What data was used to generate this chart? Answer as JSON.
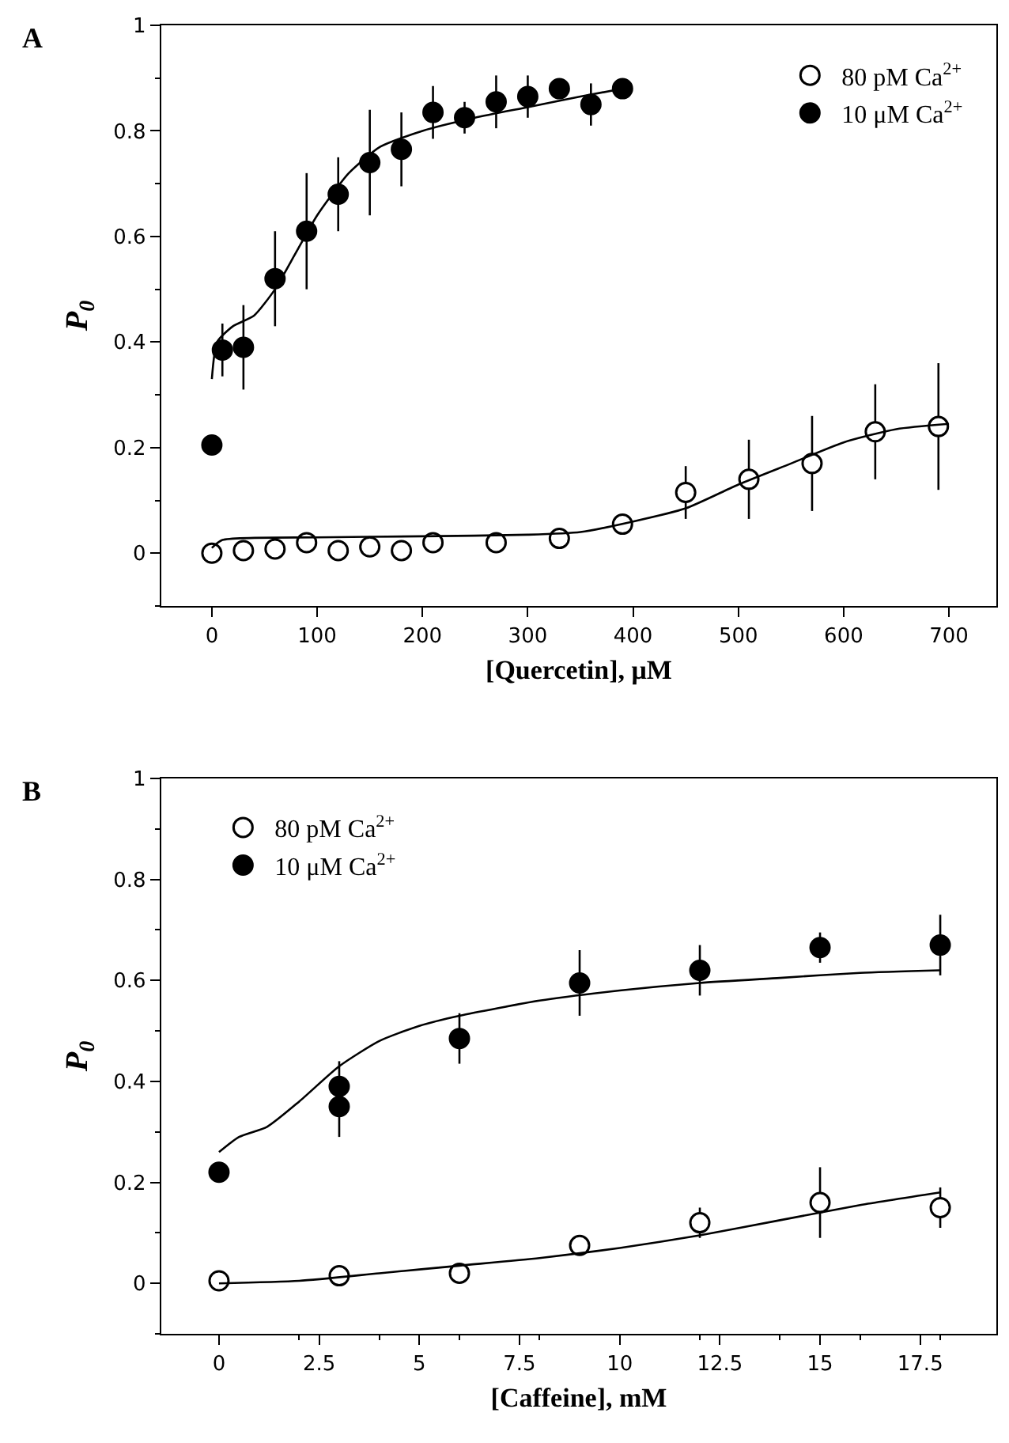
{
  "chart_data": [
    {
      "type": "scatter",
      "title": "A",
      "xlabel": "[Quercetin], μM",
      "ylabel": "P$_{0}$",
      "xlim": [
        -48,
        745
      ],
      "ylim": [
        -0.1,
        1
      ],
      "xticks": [
        0,
        100,
        200,
        300,
        400,
        500,
        600,
        700
      ],
      "yticks": [
        0,
        0.2,
        0.4,
        0.6,
        0.8,
        1
      ],
      "legend": "top right",
      "marker": "circle",
      "series": [
        {
          "name": "80 pM Ca$^{2+}$",
          "color": "#ffffff",
          "x": [
            0,
            30,
            60,
            90,
            120,
            150,
            180,
            210,
            270,
            330,
            390,
            450,
            510,
            570,
            630,
            690
          ],
          "values": [
            0.0,
            0.005,
            0.008,
            0.02,
            0.005,
            0.012,
            0.005,
            0.02,
            0.02,
            0.028,
            0.055,
            0.115,
            0.14,
            0.17,
            0.23,
            0.24
          ],
          "errors": [
            null,
            null,
            null,
            null,
            null,
            null,
            null,
            null,
            null,
            null,
            null,
            0.05,
            0.075,
            0.09,
            0.09,
            0.12
          ]
        },
        {
          "name": "10 μM Ca$^{2+}$",
          "color": "#000000",
          "x": [
            0,
            10,
            30,
            60,
            90,
            120,
            150,
            180,
            210,
            240,
            270,
            300,
            330,
            360,
            390
          ],
          "values": [
            0.205,
            0.385,
            0.39,
            0.52,
            0.61,
            0.68,
            0.74,
            0.765,
            0.835,
            0.825,
            0.855,
            0.865,
            0.88,
            0.85,
            0.88
          ],
          "errors": [
            null,
            0.05,
            0.08,
            0.09,
            0.11,
            0.07,
            0.1,
            0.07,
            0.05,
            0.03,
            0.05,
            0.04,
            null,
            0.04,
            null
          ]
        },
        {
          "type": "line",
          "color": "#000000",
          "marker": "none",
          "x": [
            0,
            10,
            100,
            200,
            300,
            350,
            400,
            450,
            500,
            550,
            600,
            650,
            700
          ],
          "values": [
            0.01,
            0.025,
            0.03,
            0.032,
            0.035,
            0.04,
            0.06,
            0.085,
            0.13,
            0.17,
            0.21,
            0.235,
            0.245
          ]
        },
        {
          "type": "line",
          "color": "#000000",
          "marker": "none",
          "x": [
            0,
            5,
            20,
            40,
            60,
            80,
            100,
            130,
            160,
            200,
            250,
            300,
            350,
            390
          ],
          "values": [
            0.33,
            0.4,
            0.43,
            0.45,
            0.5,
            0.57,
            0.64,
            0.72,
            0.77,
            0.8,
            0.825,
            0.845,
            0.865,
            0.88
          ]
        }
      ]
    },
    {
      "type": "scatter",
      "title": "B",
      "xlabel": "[Caffeine], mM",
      "ylabel": "P$_{0}$",
      "xlim": [
        -1.44,
        19.4
      ],
      "ylim": [
        -0.1,
        1
      ],
      "xticks": [
        0,
        2.5,
        5,
        7.5,
        10,
        12.5,
        15,
        17.5
      ],
      "yticks": [
        0,
        0.2,
        0.4,
        0.6,
        0.8,
        1
      ],
      "legend": "top left",
      "marker": "circle",
      "series": [
        {
          "name": "80 pM Ca$^{2+}$",
          "color": "#ffffff",
          "x": [
            0,
            3,
            6,
            9,
            12,
            15,
            18
          ],
          "values": [
            0.005,
            0.015,
            0.02,
            0.075,
            0.12,
            0.16,
            0.15
          ],
          "errors": [
            null,
            null,
            null,
            null,
            0.03,
            0.07,
            0.04
          ]
        },
        {
          "name": "10 μM Ca$^{2+}$",
          "color": "#000000",
          "x": [
            0,
            3,
            3,
            6,
            9,
            12,
            15,
            18
          ],
          "values": [
            0.22,
            0.39,
            0.35,
            0.485,
            0.595,
            0.62,
            0.665,
            0.67
          ],
          "errors": [
            null,
            0.05,
            0.06,
            0.05,
            0.065,
            0.05,
            0.03,
            0.06
          ]
        },
        {
          "type": "line",
          "color": "#000000",
          "marker": "none",
          "x": [
            0,
            2,
            4,
            6,
            8,
            10,
            12,
            14,
            16,
            18
          ],
          "values": [
            0,
            0.005,
            0.02,
            0.035,
            0.05,
            0.07,
            0.095,
            0.125,
            0.155,
            0.18
          ]
        },
        {
          "type": "line",
          "color": "#000000",
          "marker": "none",
          "x": [
            0,
            0.5,
            1.2,
            2,
            3,
            4,
            5,
            6,
            8,
            10,
            12,
            14,
            16,
            18
          ],
          "values": [
            0.26,
            0.29,
            0.31,
            0.36,
            0.43,
            0.48,
            0.51,
            0.53,
            0.56,
            0.58,
            0.595,
            0.605,
            0.615,
            0.62
          ]
        }
      ]
    }
  ]
}
